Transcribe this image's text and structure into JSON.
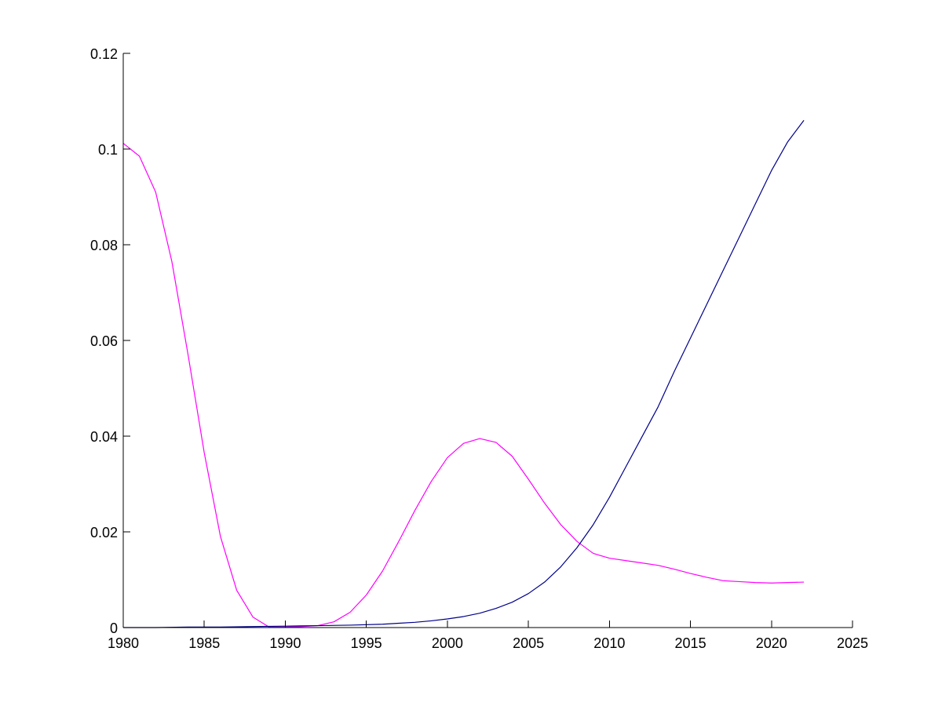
{
  "chart_data": {
    "type": "line",
    "title": "",
    "xlabel": "",
    "ylabel": "",
    "xlim": [
      1980,
      2025
    ],
    "ylim": [
      0,
      0.12
    ],
    "xticks": [
      1980,
      1985,
      1990,
      1995,
      2000,
      2005,
      2010,
      2015,
      2020,
      2025
    ],
    "xtick_labels": [
      "1980",
      "1985",
      "1990",
      "1995",
      "2000",
      "2005",
      "2010",
      "2015",
      "2020",
      "2025"
    ],
    "yticks": [
      0,
      0.02,
      0.04,
      0.06,
      0.08,
      0.1,
      0.12
    ],
    "ytick_labels": [
      "0",
      "0.02",
      "0.04",
      "0.06",
      "0.08",
      "0.1",
      "0.12"
    ],
    "grid": false,
    "legend": "none",
    "colors": {
      "series_1": "#ff00ff",
      "series_2": "#00008b",
      "axis": "#000000"
    },
    "series": [
      {
        "color": "#ff00ff",
        "x": [
          1980,
          1981,
          1982,
          1983,
          1984,
          1985,
          1986,
          1987,
          1988,
          1989,
          1990,
          1991,
          1992,
          1993,
          1994,
          1995,
          1996,
          1997,
          1998,
          1999,
          2000,
          2001,
          2002,
          2003,
          2004,
          2005,
          2006,
          2007,
          2008,
          2009,
          2010,
          2011,
          2012,
          2013,
          2014,
          2015,
          2016,
          2017,
          2018,
          2019,
          2020,
          2021,
          2022
        ],
        "y": [
          0.1012,
          0.0985,
          0.091,
          0.0765,
          0.057,
          0.0365,
          0.019,
          0.0078,
          0.0022,
          0.0001,
          0.0001,
          0.0002,
          0.0004,
          0.0012,
          0.0032,
          0.0068,
          0.0118,
          0.018,
          0.0245,
          0.0305,
          0.0355,
          0.0385,
          0.0395,
          0.0387,
          0.0358,
          0.031,
          0.026,
          0.0215,
          0.018,
          0.0155,
          0.0145,
          0.014,
          0.0135,
          0.013,
          0.0122,
          0.0113,
          0.0105,
          0.0098,
          0.0096,
          0.0094,
          0.0093,
          0.0094,
          0.0095
        ]
      },
      {
        "color": "#00008b",
        "x": [
          1980,
          1982,
          1984,
          1986,
          1988,
          1990,
          1992,
          1994,
          1996,
          1997,
          1998,
          1999,
          2000,
          2001,
          2002,
          2003,
          2004,
          2005,
          2006,
          2007,
          2008,
          2009,
          2010,
          2011,
          2012,
          2013,
          2014,
          2015,
          2016,
          2017,
          2018,
          2019,
          2020,
          2021,
          2022
        ],
        "y": [
          0.0,
          0.0,
          0.0001,
          0.0001,
          0.0002,
          0.0003,
          0.0004,
          0.0005,
          0.0007,
          0.0009,
          0.0011,
          0.0014,
          0.0018,
          0.0023,
          0.003,
          0.004,
          0.0053,
          0.0071,
          0.0095,
          0.0127,
          0.0167,
          0.0215,
          0.0272,
          0.0335,
          0.0398,
          0.0461,
          0.0535,
          0.0605,
          0.0675,
          0.0745,
          0.0815,
          0.0885,
          0.0955,
          0.1015,
          0.106
        ]
      }
    ]
  }
}
